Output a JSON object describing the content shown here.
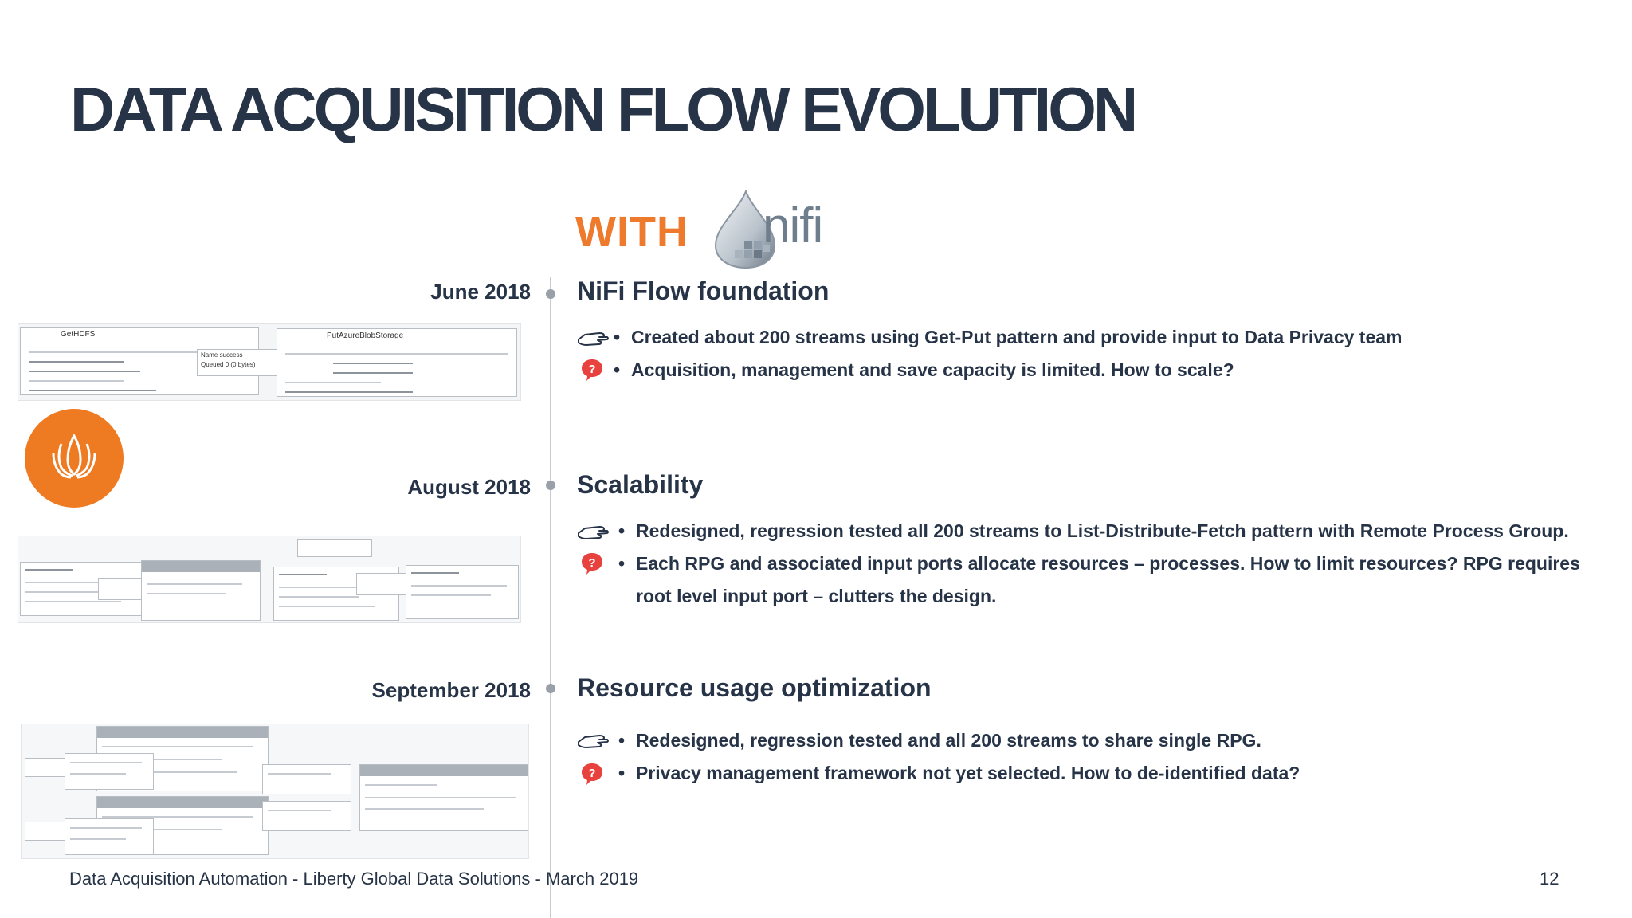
{
  "title": "DATA ACQUISITION FLOW EVOLUTION",
  "subtitle": {
    "prefix": "WITH",
    "logo_text": "nifi"
  },
  "sections": [
    {
      "date": "June 2018",
      "heading": "NiFi Flow foundation",
      "bullets": [
        {
          "icon": "pointing-hand-icon",
          "text": "Created about 200 streams using Get-Put pattern and provide input to Data Privacy team"
        },
        {
          "icon": "question-bubble-icon",
          "text": "Acquisition, management and save capacity is limited. How to scale?"
        }
      ]
    },
    {
      "date": "August 2018",
      "heading": "Scalability",
      "bullets": [
        {
          "icon": "pointing-hand-icon",
          "text": "Redesigned, regression tested all 200 streams to List-Distribute-Fetch pattern with Remote Process Group."
        },
        {
          "icon": "question-bubble-icon",
          "text": "Each RPG and associated input ports allocate resources – processes. How to limit resources? RPG requires root level input port – clutters the design."
        }
      ]
    },
    {
      "date": "September 2018",
      "heading": "Resource usage optimization",
      "bullets": [
        {
          "icon": "pointing-hand-icon",
          "text": "Redesigned, regression tested and all 200 streams to share single RPG."
        },
        {
          "icon": "question-bubble-icon",
          "text": "Privacy management framework not yet selected.  How to de-identified data?"
        }
      ]
    }
  ],
  "thumbnails": {
    "june": {
      "left_box": "GetHDFS",
      "right_box": "PutAzureBlobStorage",
      "conn_name": "Name  success",
      "conn_queued": "Queued  0 (0 bytes)"
    }
  },
  "footer": "Data Acquisition Automation - Liberty Global Data Solutions - March 2019",
  "page_number": "12",
  "colors": {
    "accent": "#ee7a2e",
    "text": "#273447",
    "question": "#e8423f"
  }
}
